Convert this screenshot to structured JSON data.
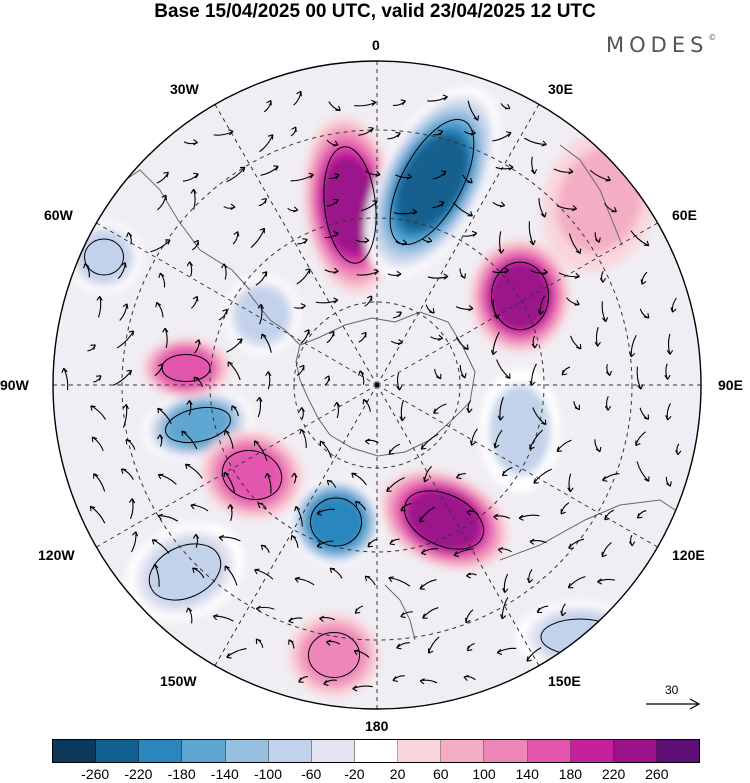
{
  "title": "Base 15/04/2025 00 UTC, valid 23/04/2025 12 UTC",
  "brand": "MODES",
  "brand_mark": "©",
  "map": {
    "projection": "south-polar-stereographic",
    "longitude_labels": {
      "top": "0",
      "top_right": "30E",
      "right_upper": "60E",
      "right": "90E",
      "right_lower": "120E",
      "bottom_right": "150E",
      "bottom": "180",
      "bottom_left": "150W",
      "left_lower": "120W",
      "left": "90W",
      "left_upper": "60W",
      "top_left": "30W"
    },
    "reference_vector": "30",
    "anomaly_centers": [
      {
        "sign": "positive",
        "strength": 240
      },
      {
        "sign": "negative",
        "strength": -250
      },
      {
        "sign": "positive",
        "strength": 220
      },
      {
        "sign": "positive",
        "strength": 220
      },
      {
        "sign": "negative",
        "strength": -200
      },
      {
        "sign": "negative",
        "strength": -180
      },
      {
        "sign": "positive",
        "strength": 160
      },
      {
        "sign": "positive",
        "strength": 140
      },
      {
        "sign": "negative",
        "strength": -100
      },
      {
        "sign": "negative",
        "strength": -100
      },
      {
        "sign": "positive",
        "strength": 100
      },
      {
        "sign": "negative",
        "strength": -100
      },
      {
        "sign": "negative",
        "strength": -80
      },
      {
        "sign": "negative",
        "strength": -90
      },
      {
        "sign": "positive",
        "strength": 80
      }
    ]
  },
  "colorbar": {
    "colors": [
      "#0d3a5c",
      "#12608f",
      "#2a87bd",
      "#5ea6d2",
      "#96bfe0",
      "#c2d2ea",
      "#e4e4f1",
      "#ffffff",
      "#f9d6db",
      "#f4aec4",
      "#ee86b9",
      "#e356ae",
      "#c5219c",
      "#9b128a",
      "#5c0f74"
    ],
    "ticks": [
      "-260",
      "-220",
      "-180",
      "-140",
      "-100",
      "-60",
      "-20",
      "20",
      "60",
      "100",
      "140",
      "180",
      "220",
      "260"
    ]
  }
}
